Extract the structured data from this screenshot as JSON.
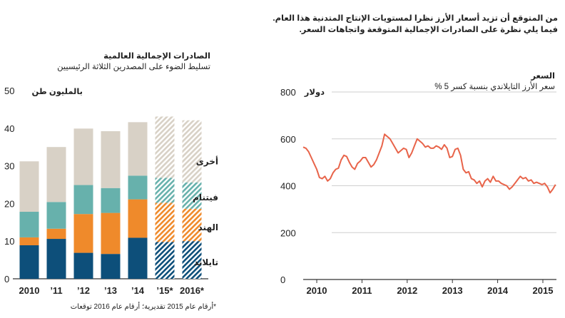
{
  "intro": {
    "line1": "من المتوقع أن تزيد أسعار الأرز نظرا لمستويات الإنتاج المتدنية هذا العام.",
    "line2": "فيما يلي نظرة على الصادرات الإجمالية المتوقعة واتجاهات السعر."
  },
  "footnote": "*أرقام عام 2015 تقديرية؛ أرقام عام 2016 توقعات",
  "colors": {
    "thailand": "#0d4f7a",
    "india": "#ef8a2b",
    "vietnam": "#67b1ac",
    "other": "#d8d1c6",
    "price_line": "#e8644a"
  },
  "chart_data": [
    {
      "type": "bar",
      "stacked": true,
      "title": "الصادرات الإجمالية العالمية",
      "subtitle": "تسليط الضوء على المصدرين الثلاثة الرئيسيين",
      "ylabel": "بالمليون طن",
      "ylim": [
        0,
        50
      ],
      "yticks": [
        0,
        10,
        20,
        30,
        40,
        50
      ],
      "grid": false,
      "categories": [
        "2010",
        "’11",
        "’12",
        "’13",
        "’14",
        "’15*",
        "2016*"
      ],
      "hatched_categories": [
        "’15*",
        "2016*"
      ],
      "series": [
        {
          "name": "تايلاند",
          "values": [
            8.9,
            10.6,
            6.9,
            6.6,
            10.9,
            9.8,
            10.0
          ]
        },
        {
          "name": "الهند",
          "values": [
            2.1,
            2.7,
            10.3,
            10.9,
            10.2,
            10.4,
            8.6
          ]
        },
        {
          "name": "فيتنام",
          "values": [
            6.8,
            7.1,
            7.7,
            6.6,
            6.3,
            6.6,
            7.0
          ]
        },
        {
          "name": "أخرى",
          "values": [
            13.4,
            14.6,
            15.0,
            15.1,
            14.2,
            16.3,
            16.5
          ]
        }
      ]
    },
    {
      "type": "line",
      "title": "السعر",
      "subtitle": "سعر الأرز التايلاندي بنسبة كسر 5 %",
      "ylabel": "دولار",
      "ylim": [
        0,
        800
      ],
      "yticks": [
        0,
        200,
        400,
        600,
        800
      ],
      "xlim": [
        2009.7,
        2015.3
      ],
      "xticks": [
        "2010",
        "2011",
        "2012",
        "2013",
        "2014",
        "2015"
      ],
      "grid": true,
      "series": [
        {
          "x": [
            2009.7,
            2009.76,
            2009.82,
            2009.88,
            2009.94,
            2010.0,
            2010.06,
            2010.12,
            2010.18,
            2010.24,
            2010.3,
            2010.36,
            2010.42,
            2010.48,
            2010.54,
            2010.6,
            2010.66,
            2010.72,
            2010.78,
            2010.84,
            2010.9,
            2010.96,
            2011.02,
            2011.08,
            2011.14,
            2011.2,
            2011.26,
            2011.32,
            2011.38,
            2011.44,
            2011.5,
            2011.56,
            2011.62,
            2011.68,
            2011.74,
            2011.8,
            2011.86,
            2011.92,
            2011.98,
            2012.04,
            2012.1,
            2012.16,
            2012.22,
            2012.28,
            2012.34,
            2012.4,
            2012.46,
            2012.52,
            2012.58,
            2012.64,
            2012.7,
            2012.76,
            2012.82,
            2012.88,
            2012.94,
            2013.0,
            2013.06,
            2013.12,
            2013.18,
            2013.24,
            2013.3,
            2013.36,
            2013.42,
            2013.48,
            2013.54,
            2013.6,
            2013.66,
            2013.72,
            2013.78,
            2013.84,
            2013.9,
            2013.96,
            2014.02,
            2014.08,
            2014.14,
            2014.2,
            2014.26,
            2014.32,
            2014.38,
            2014.44,
            2014.5,
            2014.56,
            2014.62,
            2014.68,
            2014.74,
            2014.8,
            2014.86,
            2014.92,
            2014.98,
            2015.04,
            2015.1,
            2015.16,
            2015.22,
            2015.28
          ],
          "values": [
            565,
            560,
            545,
            520,
            495,
            470,
            435,
            430,
            440,
            420,
            430,
            455,
            470,
            475,
            510,
            530,
            525,
            500,
            480,
            470,
            495,
            505,
            520,
            520,
            500,
            480,
            490,
            510,
            540,
            570,
            620,
            610,
            600,
            580,
            560,
            540,
            550,
            560,
            555,
            520,
            540,
            570,
            600,
            590,
            580,
            565,
            570,
            560,
            560,
            570,
            565,
            555,
            575,
            560,
            520,
            525,
            555,
            560,
            530,
            470,
            455,
            460,
            430,
            425,
            410,
            420,
            395,
            420,
            430,
            415,
            440,
            420,
            420,
            410,
            405,
            400,
            385,
            395,
            410,
            425,
            440,
            430,
            435,
            420,
            425,
            410,
            415,
            410,
            405,
            410,
            395,
            370,
            385,
            405
          ]
        }
      ]
    }
  ]
}
